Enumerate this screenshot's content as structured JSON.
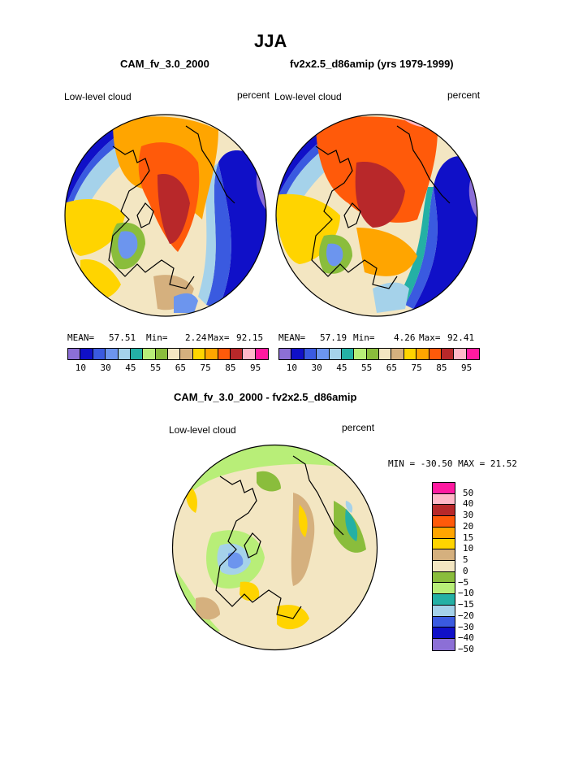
{
  "page_title": "JJA",
  "left_panel": {
    "case_name": "CAM_fv_3.0_2000",
    "variable": "Low-level cloud",
    "units": "percent",
    "mean_label": "MEAN=",
    "mean_value": "57.51",
    "min_label": "Min=",
    "min_value": "2.24",
    "max_label": "Max=",
    "max_value": "92.15"
  },
  "right_panel": {
    "case_name": "fv2x2.5_d86amip (yrs 1979-1999)",
    "variable": "Low-level cloud",
    "units": "percent",
    "mean_label": "MEAN=",
    "mean_value": "57.19",
    "min_label": "Min=",
    "min_value": "4.26",
    "max_label": "Max=",
    "max_value": "92.41"
  },
  "top_colorbar": {
    "colors": [
      "#8c6fd6",
      "#1010c8",
      "#3a5ae0",
      "#6c95ee",
      "#a5d2ea",
      "#24b0a5",
      "#b8ee78",
      "#8abd3c",
      "#f3e6c2",
      "#d5b07e",
      "#ffd400",
      "#ffa500",
      "#ff5a0a",
      "#b8282a",
      "#ffb8c8",
      "#ff1aa0"
    ],
    "labels": [
      "10",
      "30",
      "45",
      "55",
      "65",
      "75",
      "85",
      "95"
    ]
  },
  "diff_panel": {
    "title": "CAM_fv_3.0_2000 - fv2x2.5_d86amip",
    "variable": "Low-level cloud",
    "units": "percent",
    "min_max_text": "MIN = -30.50 MAX =  21.52"
  },
  "diff_colorbar": {
    "colors": [
      "#ff1aa0",
      "#ffb8c8",
      "#b8282a",
      "#ff5a0a",
      "#ffa500",
      "#ffd400",
      "#d5b07e",
      "#f3e6c2",
      "#8abd3c",
      "#b8ee78",
      "#24b0a5",
      "#a5d2ea",
      "#3a5ae0",
      "#1010c8",
      "#8c6fd6"
    ],
    "labels": [
      "50",
      "40",
      "30",
      "20",
      "15",
      "10",
      "5",
      "0",
      "-5",
      "-10",
      "-15",
      "-20",
      "-30",
      "-40",
      "-50"
    ]
  }
}
